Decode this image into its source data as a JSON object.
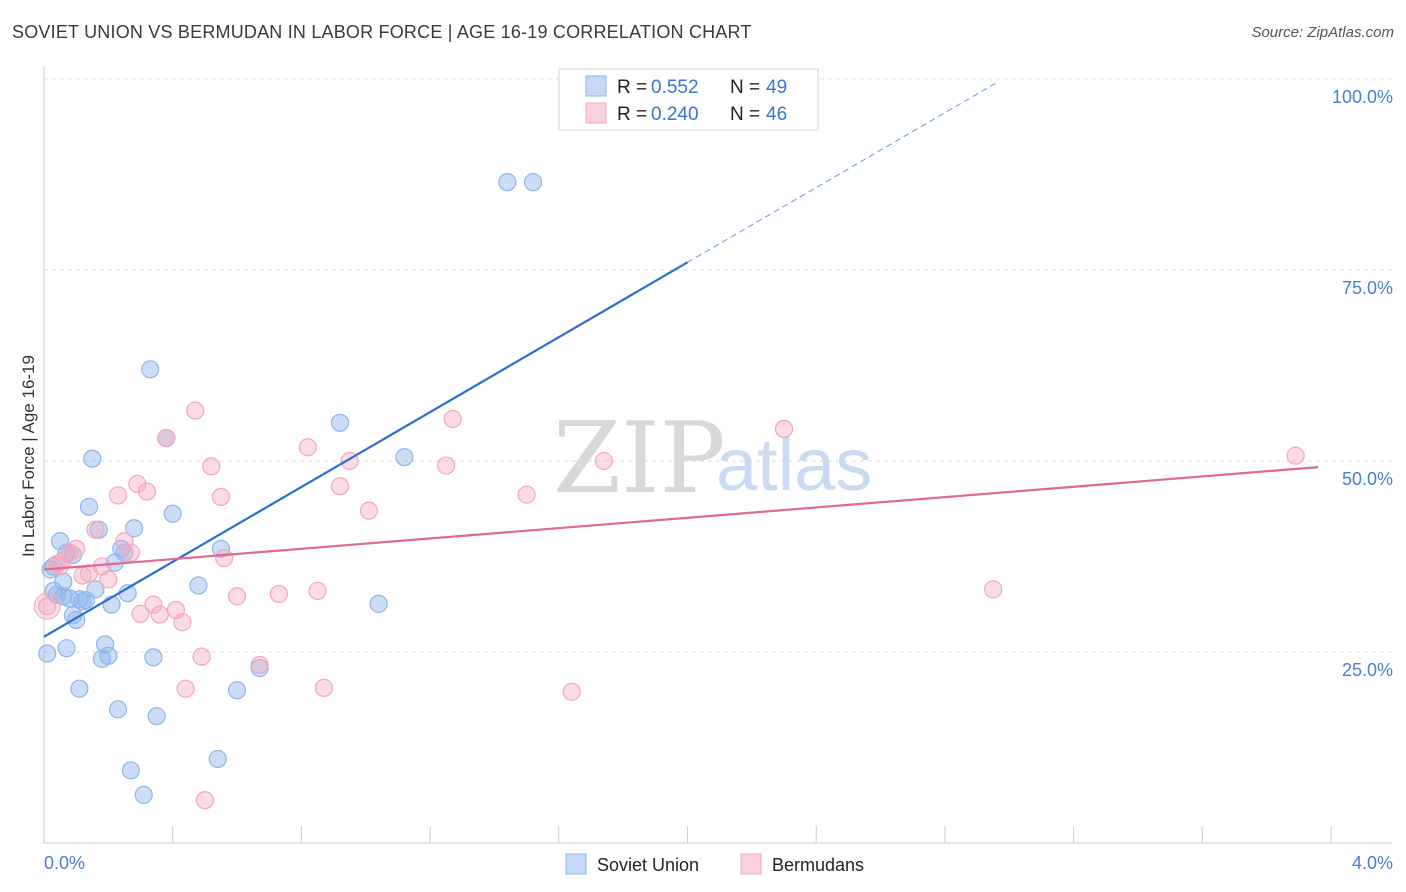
{
  "title": "SOVIET UNION VS BERMUDAN IN LABOR FORCE | AGE 16-19 CORRELATION CHART",
  "source": "Source: ZipAtlas.com",
  "watermark": {
    "zip": "ZIP",
    "atlas": "atlas"
  },
  "colors": {
    "soviet": "#8fb6ea",
    "soviet_line": "#2a6fcf",
    "bermudan": "#f4a7bf",
    "bermudan_line": "#e06892",
    "axis_label": "#4a7fd0",
    "grid": "#dddddd"
  },
  "legend": {
    "rows": [
      {
        "r_label": "R = ",
        "r_value": "0.552",
        "n_label": "N = ",
        "n_value": "49"
      },
      {
        "r_label": "R = ",
        "r_value": "0.240",
        "n_label": "N = ",
        "n_value": "46"
      }
    ]
  },
  "chart_data": {
    "type": "scatter",
    "title": "SOVIET UNION VS BERMUDAN IN LABOR FORCE | AGE 16-19 CORRELATION CHART",
    "xlabel": "",
    "ylabel": "In Labor Force | Age 16-19",
    "xlim": [
      0,
      4
    ],
    "ylim": [
      0,
      100
    ],
    "x_tick_labels": [
      "0.0%",
      "4.0%"
    ],
    "y_ticks": [
      25,
      50,
      75,
      100
    ],
    "y_tick_labels": [
      "25.0%",
      "50.0%",
      "75.0%",
      "100.0%"
    ],
    "series": [
      {
        "name": "Soviet Union",
        "trend": {
          "x0": 0.0,
          "y0": 27.0,
          "x1": 2.0,
          "y1": 76.0,
          "dash_to_x": 2.96,
          "dash_to_y": 99.5
        },
        "points": [
          [
            0.02,
            35.8
          ],
          [
            0.03,
            33.0
          ],
          [
            0.04,
            32.5
          ],
          [
            0.05,
            39.5
          ],
          [
            0.06,
            34.2
          ],
          [
            0.07,
            38.0
          ],
          [
            0.08,
            32.0
          ],
          [
            0.09,
            29.8
          ],
          [
            0.1,
            29.2
          ],
          [
            0.11,
            20.2
          ],
          [
            0.12,
            31.6
          ],
          [
            0.13,
            31.8
          ],
          [
            0.14,
            44.0
          ],
          [
            0.15,
            50.3
          ],
          [
            0.16,
            33.2
          ],
          [
            0.17,
            41.0
          ],
          [
            0.18,
            24.1
          ],
          [
            0.19,
            26.0
          ],
          [
            0.2,
            24.5
          ],
          [
            0.21,
            31.2
          ],
          [
            0.22,
            36.7
          ],
          [
            0.23,
            17.5
          ],
          [
            0.25,
            38.0
          ],
          [
            0.26,
            32.7
          ],
          [
            0.27,
            9.5
          ],
          [
            0.28,
            41.2
          ],
          [
            0.31,
            6.3
          ],
          [
            0.33,
            62.0
          ],
          [
            0.34,
            24.3
          ],
          [
            0.35,
            16.6
          ],
          [
            0.38,
            53.0
          ],
          [
            0.4,
            43.1
          ],
          [
            0.48,
            33.7
          ],
          [
            0.54,
            11.0
          ],
          [
            0.55,
            38.5
          ],
          [
            0.6,
            20.0
          ],
          [
            0.67,
            22.9
          ],
          [
            0.92,
            55.0
          ],
          [
            1.04,
            31.3
          ],
          [
            1.12,
            50.5
          ],
          [
            1.44,
            86.5
          ],
          [
            1.52,
            86.5
          ],
          [
            0.01,
            24.8
          ],
          [
            0.07,
            25.5
          ],
          [
            0.09,
            37.7
          ],
          [
            0.11,
            31.9
          ],
          [
            0.24,
            38.5
          ],
          [
            0.06,
            32.3
          ],
          [
            0.03,
            36.2
          ]
        ]
      },
      {
        "name": "Bermudans",
        "trend": {
          "x0": 0.0,
          "y0": 35.8,
          "x1": 3.96,
          "y1": 49.2
        },
        "points": [
          [
            0.01,
            31.0
          ],
          [
            0.04,
            36.5
          ],
          [
            0.06,
            37.0
          ],
          [
            0.08,
            38.0
          ],
          [
            0.1,
            38.5
          ],
          [
            0.14,
            35.3
          ],
          [
            0.16,
            41.0
          ],
          [
            0.18,
            36.2
          ],
          [
            0.2,
            34.5
          ],
          [
            0.23,
            45.5
          ],
          [
            0.25,
            39.5
          ],
          [
            0.27,
            38.0
          ],
          [
            0.29,
            47.0
          ],
          [
            0.3,
            30.0
          ],
          [
            0.32,
            46.0
          ],
          [
            0.34,
            31.2
          ],
          [
            0.36,
            29.9
          ],
          [
            0.38,
            53.0
          ],
          [
            0.41,
            30.5
          ],
          [
            0.43,
            28.9
          ],
          [
            0.44,
            20.2
          ],
          [
            0.47,
            56.6
          ],
          [
            0.49,
            24.4
          ],
          [
            0.5,
            5.6
          ],
          [
            0.52,
            49.3
          ],
          [
            0.55,
            45.3
          ],
          [
            0.56,
            37.3
          ],
          [
            0.6,
            32.3
          ],
          [
            0.67,
            23.3
          ],
          [
            0.73,
            32.6
          ],
          [
            0.82,
            51.8
          ],
          [
            0.85,
            33.0
          ],
          [
            0.87,
            20.3
          ],
          [
            0.92,
            46.7
          ],
          [
            0.95,
            50.0
          ],
          [
            1.01,
            43.5
          ],
          [
            1.25,
            49.4
          ],
          [
            1.27,
            55.5
          ],
          [
            1.5,
            45.6
          ],
          [
            1.64,
            19.8
          ],
          [
            1.74,
            50.0
          ],
          [
            2.3,
            54.2
          ],
          [
            2.95,
            33.2
          ],
          [
            3.89,
            50.7
          ],
          [
            0.05,
            36.2
          ],
          [
            0.12,
            35.0
          ]
        ]
      }
    ]
  },
  "bottom_legend": [
    {
      "label": "Soviet Union"
    },
    {
      "label": "Bermudans"
    }
  ]
}
